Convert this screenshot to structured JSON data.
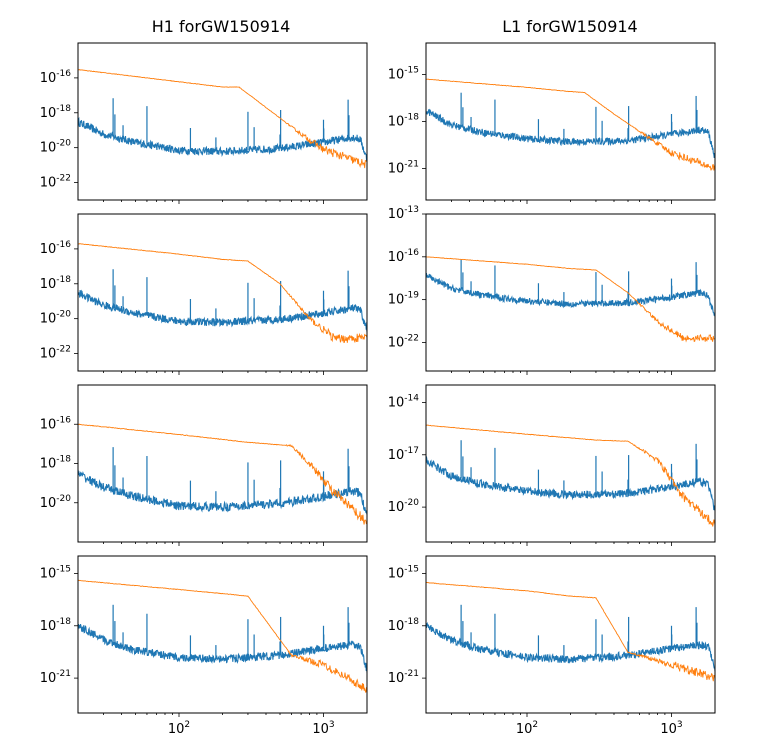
{
  "chart_data": [
    {
      "type": "line",
      "title": "H1 forGW150914",
      "xscale": "log",
      "yscale": "log",
      "xlim": [
        20,
        2000
      ],
      "ylim": [
        1e-23,
        1e-14
      ],
      "yticks": [
        {
          "value": 1e-22,
          "label": "10",
          "exp": "-22"
        },
        {
          "value": 1e-20,
          "label": "10",
          "exp": "-20"
        },
        {
          "value": 1e-18,
          "label": "10",
          "exp": "-18"
        },
        {
          "value": 1e-16,
          "label": "10",
          "exp": "-16"
        }
      ],
      "series": [
        {
          "color": "#1f77b4",
          "x": [
            20,
            30,
            50,
            100,
            200,
            500,
            1000,
            1600,
            1800,
            2000
          ],
          "y": [
            3e-19,
            6e-20,
            2e-20,
            7e-21,
            6e-21,
            9e-21,
            2e-20,
            4e-20,
            3e-20,
            2e-21
          ]
        },
        {
          "color": "#ff7f0e",
          "x": [
            20,
            100,
            200,
            260,
            400,
            700,
            1000,
            2000
          ],
          "y": [
            3e-16,
            6e-17,
            3e-17,
            3e-17,
            2e-18,
            6e-20,
            8e-21,
            1e-21
          ]
        }
      ]
    },
    {
      "type": "line",
      "title": "L1 forGW150914",
      "xscale": "log",
      "yscale": "log",
      "xlim": [
        20,
        2000
      ],
      "ylim": [
        1e-23,
        1e-13
      ],
      "yticks": [
        {
          "value": 1e-21,
          "label": "10",
          "exp": "-21"
        },
        {
          "value": 1e-18,
          "label": "10",
          "exp": "-18"
        },
        {
          "value": 1e-15,
          "label": "10",
          "exp": "-15"
        }
      ],
      "series": [
        {
          "color": "#1f77b4",
          "x": [
            20,
            30,
            50,
            100,
            200,
            500,
            1000,
            1600,
            1800,
            2000
          ],
          "y": [
            5e-18,
            6e-19,
            2e-19,
            8e-20,
            5e-20,
            6e-20,
            1.5e-19,
            3e-19,
            2e-19,
            5e-21
          ]
        },
        {
          "color": "#ff7f0e",
          "x": [
            20,
            100,
            200,
            250,
            400,
            700,
            1000,
            2000
          ],
          "y": [
            5e-16,
            1.5e-16,
            8e-17,
            7e-17,
            3e-18,
            9e-20,
            1e-20,
            1e-21
          ]
        }
      ]
    },
    {
      "type": "line",
      "xscale": "log",
      "yscale": "log",
      "xlim": [
        20,
        2000
      ],
      "ylim": [
        1e-23,
        1e-14
      ],
      "yticks": [
        {
          "value": 1e-22,
          "label": "10",
          "exp": "-22"
        },
        {
          "value": 1e-20,
          "label": "10",
          "exp": "-20"
        },
        {
          "value": 1e-18,
          "label": "10",
          "exp": "-18"
        },
        {
          "value": 1e-16,
          "label": "10",
          "exp": "-16"
        }
      ],
      "series": [
        {
          "color": "#1f77b4",
          "x": [
            20,
            30,
            50,
            100,
            200,
            500,
            1000,
            1600,
            1800,
            2000
          ],
          "y": [
            3e-19,
            6e-20,
            2e-20,
            7e-21,
            6e-21,
            9e-21,
            2e-20,
            4e-20,
            3e-20,
            2e-21
          ]
        },
        {
          "color": "#ff7f0e",
          "x": [
            20,
            100,
            200,
            300,
            500,
            800,
            1200,
            2000
          ],
          "y": [
            2e-16,
            5e-17,
            2.5e-17,
            2e-17,
            1e-18,
            1e-20,
            7e-22,
            8e-22
          ]
        }
      ]
    },
    {
      "type": "line",
      "xscale": "log",
      "yscale": "log",
      "xlim": [
        20,
        2000
      ],
      "ylim": [
        1e-24,
        1e-13
      ],
      "yticks": [
        {
          "value": 1e-22,
          "label": "10",
          "exp": "-22"
        },
        {
          "value": 1e-19,
          "label": "10",
          "exp": "-19"
        },
        {
          "value": 1e-16,
          "label": "10",
          "exp": "-16"
        },
        {
          "value": 1e-13,
          "label": "10",
          "exp": "-13"
        }
      ],
      "series": [
        {
          "color": "#1f77b4",
          "x": [
            20,
            30,
            50,
            100,
            200,
            500,
            1000,
            1600,
            1800,
            2000
          ],
          "y": [
            5e-18,
            6e-19,
            2e-19,
            8e-20,
            5e-20,
            6e-20,
            1.5e-19,
            3e-19,
            2e-19,
            5e-21
          ]
        },
        {
          "color": "#ff7f0e",
          "x": [
            20,
            100,
            200,
            300,
            500,
            800,
            1200,
            2000
          ],
          "y": [
            1e-16,
            3e-17,
            1.5e-17,
            1.2e-17,
            3e-19,
            3e-21,
            2e-22,
            2e-22
          ]
        }
      ]
    },
    {
      "type": "line",
      "xscale": "log",
      "yscale": "log",
      "xlim": [
        20,
        2000
      ],
      "ylim": [
        1e-22,
        1e-14
      ],
      "yticks": [
        {
          "value": 1e-20,
          "label": "10",
          "exp": "-20"
        },
        {
          "value": 1e-18,
          "label": "10",
          "exp": "-18"
        },
        {
          "value": 1e-16,
          "label": "10",
          "exp": "-16"
        }
      ],
      "series": [
        {
          "color": "#1f77b4",
          "x": [
            20,
            30,
            50,
            100,
            200,
            500,
            1000,
            1600,
            1800,
            2000
          ],
          "y": [
            3e-19,
            6e-20,
            2e-20,
            7e-21,
            6e-21,
            9e-21,
            2e-20,
            4e-20,
            3e-20,
            2e-21
          ]
        },
        {
          "color": "#ff7f0e",
          "x": [
            20,
            100,
            300,
            600,
            800,
            1200,
            2000
          ],
          "y": [
            1e-16,
            3e-17,
            1.2e-17,
            8e-18,
            1e-18,
            3e-20,
            1e-21
          ]
        }
      ]
    },
    {
      "type": "line",
      "xscale": "log",
      "yscale": "log",
      "xlim": [
        20,
        2000
      ],
      "ylim": [
        1e-22,
        1e-13
      ],
      "yticks": [
        {
          "value": 1e-20,
          "label": "10",
          "exp": "-20"
        },
        {
          "value": 1e-17,
          "label": "10",
          "exp": "-17"
        },
        {
          "value": 1e-14,
          "label": "10",
          "exp": "-14"
        }
      ],
      "series": [
        {
          "color": "#1f77b4",
          "x": [
            20,
            30,
            50,
            100,
            200,
            500,
            1000,
            1600,
            1800,
            2000
          ],
          "y": [
            5e-18,
            6e-19,
            2e-19,
            8e-20,
            5e-20,
            6e-20,
            1.5e-19,
            3e-19,
            2e-19,
            5e-21
          ]
        },
        {
          "color": "#ff7f0e",
          "x": [
            20,
            100,
            300,
            500,
            800,
            1200,
            2000
          ],
          "y": [
            5e-16,
            1.5e-16,
            7e-17,
            6e-17,
            5e-18,
            4e-20,
            1e-21
          ]
        }
      ]
    },
    {
      "type": "line",
      "xscale": "log",
      "yscale": "log",
      "xlim": [
        20,
        2000
      ],
      "ylim": [
        1e-23,
        1e-14
      ],
      "xticks": [
        {
          "value": 100,
          "label": "10",
          "exp": "2"
        },
        {
          "value": 1000,
          "label": "10",
          "exp": "3"
        }
      ],
      "yticks": [
        {
          "value": 1e-21,
          "label": "10",
          "exp": "-21"
        },
        {
          "value": 1e-18,
          "label": "10",
          "exp": "-18"
        },
        {
          "value": 1e-15,
          "label": "10",
          "exp": "-15"
        }
      ],
      "series": [
        {
          "color": "#1f77b4",
          "x": [
            20,
            30,
            50,
            100,
            200,
            500,
            1000,
            1600,
            1800,
            2000
          ],
          "y": [
            1e-18,
            1.5e-19,
            4e-20,
            1.5e-20,
            1.2e-20,
            2e-20,
            5e-20,
            8e-20,
            6e-20,
            3e-21
          ]
        },
        {
          "color": "#ff7f0e",
          "x": [
            20,
            100,
            200,
            300,
            600,
            1000,
            1500,
            2000
          ],
          "y": [
            4e-16,
            1.2e-16,
            7e-17,
            5e-17,
            2e-20,
            6e-21,
            1e-21,
            2e-22
          ]
        }
      ]
    },
    {
      "type": "line",
      "xscale": "log",
      "yscale": "log",
      "xlim": [
        20,
        2000
      ],
      "ylim": [
        1e-23,
        1e-14
      ],
      "xticks": [
        {
          "value": 100,
          "label": "10",
          "exp": "2"
        },
        {
          "value": 1000,
          "label": "10",
          "exp": "3"
        }
      ],
      "yticks": [
        {
          "value": 1e-21,
          "label": "10",
          "exp": "-21"
        },
        {
          "value": 1e-18,
          "label": "10",
          "exp": "-18"
        },
        {
          "value": 1e-15,
          "label": "10",
          "exp": "-15"
        }
      ],
      "series": [
        {
          "color": "#1f77b4",
          "x": [
            20,
            30,
            50,
            100,
            200,
            500,
            1000,
            1600,
            1800,
            2000
          ],
          "y": [
            1e-18,
            1.5e-19,
            4e-20,
            1.5e-20,
            1.2e-20,
            2e-20,
            5e-20,
            8e-20,
            6e-20,
            3e-21
          ]
        },
        {
          "color": "#ff7f0e",
          "x": [
            20,
            100,
            200,
            300,
            500,
            1000,
            1500,
            2000
          ],
          "y": [
            3e-16,
            1e-16,
            5e-17,
            4e-17,
            3e-20,
            6e-21,
            2e-21,
            1e-21
          ]
        }
      ]
    }
  ]
}
